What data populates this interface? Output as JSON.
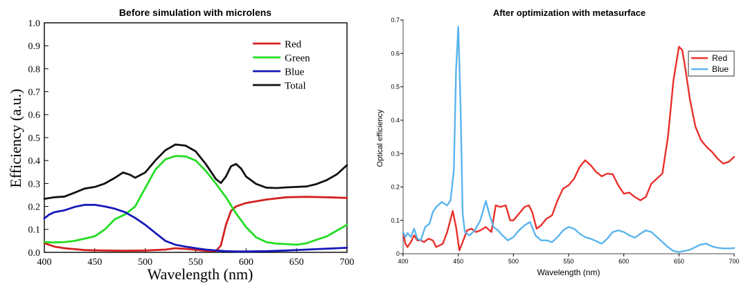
{
  "chart_data": [
    {
      "type": "line",
      "title": "Before simulation with microlens",
      "xlabel": "Wavelength (nm)",
      "ylabel": "Efficiency (a.u.)",
      "xlim": [
        400,
        700
      ],
      "ylim": [
        0,
        1.0
      ],
      "xticks": [
        400,
        450,
        500,
        550,
        600,
        650,
        700
      ],
      "yticks": [
        0.0,
        0.1,
        0.2,
        0.3,
        0.4,
        0.5,
        0.6,
        0.7,
        0.8,
        0.9,
        1.0
      ],
      "ytick_labels": [
        "0.0",
        "0.1",
        "0.2",
        "0.3",
        "0.4",
        "0.5",
        "0.6",
        "0.7",
        "0.8",
        "0.9",
        "1.0"
      ],
      "legend_position": "top-right",
      "grid": false,
      "series": [
        {
          "name": "Red",
          "color": "#d42020",
          "points": [
            [
              400,
              0.04
            ],
            [
              410,
              0.025
            ],
            [
              420,
              0.018
            ],
            [
              440,
              0.01
            ],
            [
              460,
              0.008
            ],
            [
              480,
              0.007
            ],
            [
              500,
              0.008
            ],
            [
              520,
              0.012
            ],
            [
              530,
              0.018
            ],
            [
              540,
              0.015
            ],
            [
              560,
              0.007
            ],
            [
              570,
              0.005
            ],
            [
              575,
              0.03
            ],
            [
              580,
              0.12
            ],
            [
              585,
              0.18
            ],
            [
              590,
              0.2
            ],
            [
              600,
              0.215
            ],
            [
              620,
              0.23
            ],
            [
              640,
              0.24
            ],
            [
              660,
              0.242
            ],
            [
              680,
              0.24
            ],
            [
              700,
              0.237
            ]
          ]
        },
        {
          "name": "Green",
          "color": "#22dd22",
          "points": [
            [
              400,
              0.045
            ],
            [
              410,
              0.043
            ],
            [
              420,
              0.045
            ],
            [
              430,
              0.05
            ],
            [
              440,
              0.06
            ],
            [
              450,
              0.07
            ],
            [
              460,
              0.1
            ],
            [
              470,
              0.145
            ],
            [
              480,
              0.165
            ],
            [
              490,
              0.2
            ],
            [
              500,
              0.28
            ],
            [
              510,
              0.36
            ],
            [
              520,
              0.405
            ],
            [
              530,
              0.42
            ],
            [
              540,
              0.418
            ],
            [
              550,
              0.4
            ],
            [
              560,
              0.355
            ],
            [
              570,
              0.3
            ],
            [
              580,
              0.24
            ],
            [
              590,
              0.17
            ],
            [
              600,
              0.11
            ],
            [
              610,
              0.065
            ],
            [
              620,
              0.045
            ],
            [
              630,
              0.038
            ],
            [
              640,
              0.036
            ],
            [
              650,
              0.033
            ],
            [
              660,
              0.04
            ],
            [
              670,
              0.055
            ],
            [
              680,
              0.07
            ],
            [
              690,
              0.095
            ],
            [
              700,
              0.12
            ]
          ]
        },
        {
          "name": "Blue",
          "color": "#1818b8",
          "points": [
            [
              400,
              0.148
            ],
            [
              405,
              0.165
            ],
            [
              410,
              0.175
            ],
            [
              420,
              0.183
            ],
            [
              430,
              0.198
            ],
            [
              440,
              0.207
            ],
            [
              450,
              0.207
            ],
            [
              460,
              0.2
            ],
            [
              470,
              0.19
            ],
            [
              480,
              0.175
            ],
            [
              490,
              0.15
            ],
            [
              500,
              0.12
            ],
            [
              510,
              0.085
            ],
            [
              520,
              0.05
            ],
            [
              530,
              0.033
            ],
            [
              540,
              0.025
            ],
            [
              550,
              0.018
            ],
            [
              560,
              0.012
            ],
            [
              570,
              0.008
            ],
            [
              580,
              0.005
            ],
            [
              590,
              0.004
            ],
            [
              600,
              0.004
            ],
            [
              620,
              0.005
            ],
            [
              640,
              0.008
            ],
            [
              660,
              0.012
            ],
            [
              680,
              0.016
            ],
            [
              700,
              0.02
            ]
          ]
        },
        {
          "name": "Total",
          "color": "#111111",
          "points": [
            [
              400,
              0.233
            ],
            [
              410,
              0.24
            ],
            [
              420,
              0.243
            ],
            [
              430,
              0.26
            ],
            [
              440,
              0.278
            ],
            [
              450,
              0.285
            ],
            [
              460,
              0.3
            ],
            [
              470,
              0.325
            ],
            [
              478,
              0.348
            ],
            [
              485,
              0.338
            ],
            [
              490,
              0.325
            ],
            [
              500,
              0.348
            ],
            [
              510,
              0.4
            ],
            [
              520,
              0.445
            ],
            [
              530,
              0.47
            ],
            [
              540,
              0.465
            ],
            [
              550,
              0.44
            ],
            [
              560,
              0.385
            ],
            [
              570,
              0.32
            ],
            [
              575,
              0.302
            ],
            [
              580,
              0.33
            ],
            [
              585,
              0.375
            ],
            [
              590,
              0.385
            ],
            [
              595,
              0.365
            ],
            [
              600,
              0.33
            ],
            [
              610,
              0.298
            ],
            [
              620,
              0.282
            ],
            [
              630,
              0.28
            ],
            [
              640,
              0.283
            ],
            [
              660,
              0.287
            ],
            [
              670,
              0.298
            ],
            [
              680,
              0.315
            ],
            [
              690,
              0.34
            ],
            [
              700,
              0.38
            ]
          ]
        }
      ]
    },
    {
      "type": "line",
      "title": "After optimization with metasurface",
      "xlabel": "Wavelength (nm)",
      "ylabel": "Optical efficiency",
      "xlim": [
        400,
        700
      ],
      "ylim": [
        0,
        0.7
      ],
      "xticks": [
        400,
        450,
        500,
        550,
        600,
        650,
        700
      ],
      "yticks": [
        0,
        0.1,
        0.2,
        0.3,
        0.4,
        0.5,
        0.6,
        0.7
      ],
      "ytick_labels": [
        "0",
        "0.1",
        "0.2",
        "0.3",
        "0.4",
        "0.5",
        "0.6",
        "0.7"
      ],
      "legend_position": "top-right",
      "grid": false,
      "series": [
        {
          "name": "Red",
          "color": "#e8302a",
          "points": [
            [
              400,
              0.065
            ],
            [
              402,
              0.03
            ],
            [
              404,
              0.02
            ],
            [
              407,
              0.035
            ],
            [
              410,
              0.055
            ],
            [
              413,
              0.04
            ],
            [
              416,
              0.04
            ],
            [
              419,
              0.035
            ],
            [
              423,
              0.045
            ],
            [
              427,
              0.04
            ],
            [
              430,
              0.02
            ],
            [
              433,
              0.025
            ],
            [
              436,
              0.03
            ],
            [
              440,
              0.065
            ],
            [
              445,
              0.128
            ],
            [
              448,
              0.08
            ],
            [
              451,
              0.01
            ],
            [
              454,
              0.035
            ],
            [
              458,
              0.07
            ],
            [
              462,
              0.075
            ],
            [
              466,
              0.065
            ],
            [
              470,
              0.07
            ],
            [
              475,
              0.08
            ],
            [
              480,
              0.065
            ],
            [
              484,
              0.145
            ],
            [
              488,
              0.14
            ],
            [
              493,
              0.145
            ],
            [
              497,
              0.1
            ],
            [
              500,
              0.1
            ],
            [
              505,
              0.12
            ],
            [
              510,
              0.14
            ],
            [
              514,
              0.145
            ],
            [
              517,
              0.125
            ],
            [
              521,
              0.075
            ],
            [
              525,
              0.085
            ],
            [
              530,
              0.105
            ],
            [
              535,
              0.115
            ],
            [
              540,
              0.16
            ],
            [
              545,
              0.195
            ],
            [
              550,
              0.205
            ],
            [
              555,
              0.225
            ],
            [
              560,
              0.26
            ],
            [
              565,
              0.28
            ],
            [
              570,
              0.265
            ],
            [
              575,
              0.245
            ],
            [
              580,
              0.232
            ],
            [
              585,
              0.24
            ],
            [
              590,
              0.238
            ],
            [
              595,
              0.205
            ],
            [
              600,
              0.18
            ],
            [
              605,
              0.183
            ],
            [
              610,
              0.17
            ],
            [
              615,
              0.16
            ],
            [
              620,
              0.17
            ],
            [
              625,
              0.21
            ],
            [
              630,
              0.225
            ],
            [
              635,
              0.24
            ],
            [
              640,
              0.35
            ],
            [
              645,
              0.52
            ],
            [
              650,
              0.62
            ],
            [
              653,
              0.61
            ],
            [
              656,
              0.55
            ],
            [
              660,
              0.46
            ],
            [
              665,
              0.38
            ],
            [
              670,
              0.34
            ],
            [
              675,
              0.32
            ],
            [
              680,
              0.305
            ],
            [
              685,
              0.285
            ],
            [
              690,
              0.27
            ],
            [
              695,
              0.275
            ],
            [
              700,
              0.29
            ]
          ]
        },
        {
          "name": "Blue",
          "color": "#5ab4ec",
          "points": [
            [
              400,
              0.065
            ],
            [
              402,
              0.05
            ],
            [
              404,
              0.062
            ],
            [
              407,
              0.05
            ],
            [
              410,
              0.075
            ],
            [
              413,
              0.045
            ],
            [
              416,
              0.04
            ],
            [
              420,
              0.08
            ],
            [
              424,
              0.09
            ],
            [
              427,
              0.125
            ],
            [
              430,
              0.14
            ],
            [
              435,
              0.155
            ],
            [
              440,
              0.145
            ],
            [
              443,
              0.16
            ],
            [
              446,
              0.25
            ],
            [
              448,
              0.55
            ],
            [
              450,
              0.68
            ],
            [
              452,
              0.45
            ],
            [
              454,
              0.12
            ],
            [
              456,
              0.065
            ],
            [
              460,
              0.055
            ],
            [
              465,
              0.07
            ],
            [
              470,
              0.1
            ],
            [
              475,
              0.158
            ],
            [
              478,
              0.12
            ],
            [
              482,
              0.08
            ],
            [
              486,
              0.07
            ],
            [
              490,
              0.055
            ],
            [
              495,
              0.04
            ],
            [
              500,
              0.05
            ],
            [
              505,
              0.07
            ],
            [
              510,
              0.085
            ],
            [
              515,
              0.095
            ],
            [
              520,
              0.055
            ],
            [
              525,
              0.04
            ],
            [
              530,
              0.04
            ],
            [
              535,
              0.035
            ],
            [
              540,
              0.05
            ],
            [
              545,
              0.07
            ],
            [
              550,
              0.08
            ],
            [
              555,
              0.075
            ],
            [
              560,
              0.06
            ],
            [
              565,
              0.05
            ],
            [
              570,
              0.045
            ],
            [
              575,
              0.038
            ],
            [
              580,
              0.03
            ],
            [
              585,
              0.045
            ],
            [
              590,
              0.065
            ],
            [
              595,
              0.07
            ],
            [
              600,
              0.065
            ],
            [
              605,
              0.055
            ],
            [
              610,
              0.048
            ],
            [
              615,
              0.06
            ],
            [
              620,
              0.07
            ],
            [
              625,
              0.065
            ],
            [
              630,
              0.05
            ],
            [
              635,
              0.035
            ],
            [
              640,
              0.02
            ],
            [
              645,
              0.008
            ],
            [
              650,
              0.005
            ],
            [
              655,
              0.008
            ],
            [
              660,
              0.012
            ],
            [
              665,
              0.02
            ],
            [
              670,
              0.028
            ],
            [
              675,
              0.03
            ],
            [
              680,
              0.022
            ],
            [
              685,
              0.018
            ],
            [
              690,
              0.016
            ],
            [
              695,
              0.016
            ],
            [
              700,
              0.017
            ]
          ]
        }
      ]
    }
  ]
}
